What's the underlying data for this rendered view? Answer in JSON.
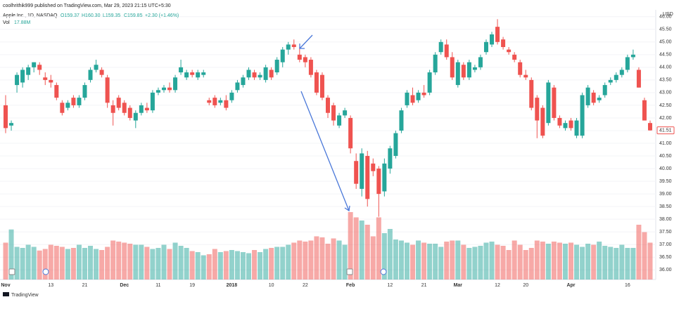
{
  "chart_data": {
    "type": "candlestick",
    "title": "coolhrithik999 published on TradingView.com, Mar 29, 2023 21:15 UTC+5:30",
    "symbol": "Apple Inc., 1D, NASDAQ",
    "ohlc_legend": [
      "O159.37",
      "H160.30",
      "L159.35",
      "C159.85",
      "+2.30 (+1.46%)"
    ],
    "volume_label": "Vol",
    "volume_value": "17.88M",
    "currency": "USD",
    "brand": "TradingView",
    "up_color": "#26a69a",
    "down_color": "#ef5350",
    "grid": true,
    "ylim": [
      35.62,
      46.27
    ],
    "yticks": [
      {
        "value": 36,
        "label": "36.00"
      },
      {
        "value": 36.5,
        "label": "36.50"
      },
      {
        "value": 37,
        "label": "37.00"
      },
      {
        "value": 37.5,
        "label": "37.50"
      },
      {
        "value": 38,
        "label": "38.00"
      },
      {
        "value": 38.5,
        "label": "38.50"
      },
      {
        "value": 39,
        "label": "39.00"
      },
      {
        "value": 39.5,
        "label": "39.50"
      },
      {
        "value": 40,
        "label": "40.00"
      },
      {
        "value": 40.5,
        "label": "40.50"
      },
      {
        "value": 41,
        "label": "41.00"
      },
      {
        "value": 41.5,
        "label": "41.50"
      },
      {
        "value": 42,
        "label": "42.00"
      },
      {
        "value": 42.5,
        "label": "42.50"
      },
      {
        "value": 43,
        "label": "43.00"
      },
      {
        "value": 43.5,
        "label": "43.50"
      },
      {
        "value": 44,
        "label": "44.00"
      },
      {
        "value": 44.5,
        "label": "44.50"
      },
      {
        "value": 45,
        "label": "45.00"
      },
      {
        "value": 45.5,
        "label": "45.50"
      },
      {
        "value": 46,
        "label": "46.00"
      }
    ],
    "volume_ylim": [
      0,
      200
    ],
    "categories": [
      "Nov",
      null,
      null,
      null,
      null,
      null,
      null,
      null,
      "13",
      null,
      null,
      null,
      null,
      null,
      "21",
      null,
      null,
      null,
      null,
      null,
      null,
      "Dec",
      null,
      null,
      null,
      null,
      null,
      "11",
      null,
      null,
      null,
      null,
      null,
      "19",
      null,
      null,
      null,
      null,
      null,
      null,
      "2018",
      null,
      null,
      null,
      null,
      null,
      null,
      "10",
      null,
      null,
      null,
      null,
      null,
      "22",
      null,
      null,
      null,
      null,
      null,
      null,
      null,
      "Feb",
      null,
      null,
      null,
      null,
      null,
      null,
      "12",
      null,
      null,
      null,
      null,
      null,
      "21",
      null,
      null,
      null,
      null,
      null,
      "Mar",
      null,
      null,
      null,
      null,
      null,
      null,
      "12",
      null,
      null,
      null,
      null,
      "20",
      null,
      null,
      null,
      null,
      null,
      null,
      null,
      "Apr",
      null,
      null,
      null,
      null,
      null,
      null,
      null,
      null,
      null,
      "16",
      null,
      null,
      null,
      null
    ],
    "open": [
      42.5,
      41.7,
      43.3,
      43.4,
      43.7,
      44.0,
      44.1,
      43.6,
      43.5,
      43.3,
      42.6,
      42.4,
      42.8,
      42.5,
      42.8,
      43.5,
      43.9,
      43.9,
      43.6,
      42.5,
      42.8,
      42.6,
      42.4,
      41.9,
      42.2,
      42.4,
      42.3,
      43.0,
      43.1,
      43.2,
      43.1,
      43.8,
      43.6,
      43.8,
      43.6,
      43.7,
      42.7,
      42.8,
      42.6,
      42.7,
      42.7,
      43.1,
      43.3,
      43.6,
      43.8,
      43.6,
      43.5,
      43.9,
      43.8,
      44.2,
      44.7,
      44.9,
      44.5,
      44.4,
      44.3,
      43.8,
      43.7,
      42.8,
      42.5,
      41.7,
      42.1,
      42.0,
      40.3,
      39.2,
      40.5,
      40.2,
      40.0,
      39.1,
      40.0,
      40.5,
      41.5,
      42.5,
      42.9,
      42.7,
      43.0,
      43.0,
      43.8,
      44.6,
      44.9,
      44.4,
      43.3,
      44.1,
      43.6,
      43.9,
      44.0,
      44.6,
      44.9,
      45.6,
      45.1,
      44.7,
      44.5,
      44.2,
      43.7,
      43.5,
      42.8,
      42.4,
      41.8,
      43.2,
      42.0,
      41.6,
      41.9,
      41.3,
      41.3,
      42.5,
      43.0,
      42.7,
      42.9,
      43.4,
      43.5,
      43.7,
      43.9,
      44.4,
      43.9,
      42.7,
      41.8
    ],
    "high": [
      42.9,
      41.9,
      43.8,
      44.0,
      44.1,
      44.2,
      44.2,
      43.8,
      43.7,
      43.4,
      42.7,
      42.7,
      42.9,
      42.9,
      43.4,
      44.0,
      44.3,
      44.0,
      43.7,
      42.7,
      42.9,
      42.7,
      42.5,
      42.3,
      42.6,
      42.6,
      43.1,
      43.2,
      43.3,
      43.4,
      43.7,
      44.3,
      43.9,
      43.9,
      43.9,
      43.9,
      42.8,
      42.9,
      42.8,
      42.9,
      43.1,
      43.5,
      43.7,
      44.0,
      43.9,
      43.8,
      44.1,
      44.0,
      44.4,
      44.8,
      45.0,
      45.1,
      44.8,
      44.5,
      44.4,
      43.9,
      43.8,
      42.9,
      42.6,
      42.2,
      42.4,
      42.1,
      40.6,
      40.8,
      40.7,
      40.4,
      40.1,
      40.4,
      40.9,
      41.5,
      42.4,
      43.1,
      43.2,
      43.1,
      43.3,
      43.9,
      44.6,
      45.1,
      45.1,
      44.6,
      44.3,
      44.2,
      44.3,
      44.1,
      44.5,
      45.1,
      45.4,
      45.9,
      45.2,
      44.8,
      44.6,
      44.3,
      43.9,
      43.6,
      42.9,
      42.5,
      43.5,
      43.3,
      42.1,
      41.9,
      42.0,
      42.0,
      43.0,
      43.3,
      43.1,
      42.9,
      43.4,
      43.6,
      43.8,
      44.0,
      44.5,
      44.7,
      44.0,
      42.8,
      41.9
    ],
    "low": [
      41.4,
      41.5,
      43.0,
      43.2,
      43.5,
      43.8,
      43.7,
      43.3,
      43.2,
      42.7,
      42.1,
      42.3,
      42.4,
      42.4,
      42.7,
      43.4,
      43.8,
      43.6,
      42.4,
      41.7,
      42.3,
      42.1,
      41.9,
      41.6,
      42.1,
      42.2,
      42.2,
      42.9,
      43.0,
      43.0,
      43.0,
      43.7,
      43.5,
      43.6,
      43.5,
      43.6,
      42.5,
      42.4,
      42.5,
      42.3,
      42.6,
      43.0,
      43.2,
      43.5,
      43.5,
      43.5,
      43.4,
      43.5,
      43.7,
      44.0,
      44.5,
      44.7,
      44.2,
      44.0,
      43.6,
      42.9,
      42.7,
      42.0,
      41.7,
      41.6,
      42.0,
      40.6,
      39.2,
      38.9,
      38.5,
      39.7,
      38.1,
      38.9,
      39.8,
      40.4,
      41.4,
      42.4,
      42.5,
      42.6,
      42.8,
      42.9,
      43.7,
      44.5,
      44.3,
      43.5,
      43.2,
      43.5,
      43.5,
      43.8,
      43.9,
      44.5,
      44.8,
      44.9,
      44.7,
      44.5,
      44.2,
      43.6,
      43.5,
      42.3,
      41.2,
      41.2,
      41.7,
      41.9,
      41.6,
      41.5,
      41.5,
      41.2,
      41.2,
      42.4,
      42.5,
      42.6,
      42.8,
      43.3,
      43.4,
      43.6,
      43.8,
      44.3,
      43.2,
      41.9,
      41.5
    ],
    "close": [
      41.6,
      41.8,
      43.7,
      43.9,
      44.0,
      44.2,
      43.9,
      43.5,
      43.4,
      42.8,
      42.2,
      42.6,
      42.5,
      42.8,
      43.3,
      43.9,
      44.1,
      43.7,
      42.6,
      42.2,
      42.4,
      42.2,
      42.0,
      42.2,
      42.5,
      42.3,
      43.0,
      43.1,
      43.2,
      43.1,
      43.6,
      44.0,
      43.8,
      43.7,
      43.8,
      43.8,
      42.6,
      42.5,
      42.7,
      42.4,
      43.0,
      43.4,
      43.6,
      43.9,
      43.6,
      43.7,
      44.0,
      43.6,
      44.3,
      44.7,
      44.9,
      44.8,
      44.3,
      44.2,
      43.7,
      43.0,
      42.8,
      42.2,
      41.9,
      42.1,
      42.3,
      40.8,
      39.4,
      40.6,
      38.8,
      39.9,
      39.0,
      40.2,
      40.8,
      41.4,
      42.3,
      43.0,
      42.6,
      43.0,
      42.9,
      43.8,
      44.5,
      45.0,
      44.4,
      43.6,
      44.2,
      43.6,
      44.2,
      44.0,
      44.4,
      45.0,
      45.3,
      45.0,
      44.8,
      44.6,
      44.3,
      43.7,
      43.6,
      42.4,
      41.9,
      41.3,
      43.4,
      42.0,
      41.7,
      41.8,
      41.6,
      41.9,
      42.9,
      43.2,
      42.6,
      42.8,
      43.3,
      43.5,
      43.7,
      43.9,
      44.4,
      44.5,
      43.2,
      41.9,
      41.51
    ],
    "volume": [
      70,
      95,
      62,
      60,
      66,
      62,
      55,
      58,
      66,
      64,
      62,
      58,
      60,
      66,
      60,
      64,
      58,
      56,
      62,
      74,
      72,
      70,
      68,
      66,
      66,
      62,
      58,
      60,
      66,
      58,
      70,
      64,
      60,
      54,
      52,
      46,
      48,
      58,
      52,
      54,
      56,
      54,
      52,
      50,
      56,
      52,
      58,
      60,
      62,
      62,
      66,
      70,
      74,
      72,
      74,
      82,
      80,
      68,
      78,
      74,
      66,
      128,
      118,
      112,
      104,
      82,
      118,
      88,
      96,
      76,
      74,
      70,
      66,
      74,
      70,
      68,
      68,
      62,
      72,
      74,
      74,
      66,
      60,
      62,
      64,
      70,
      72,
      66,
      64,
      56,
      74,
      66,
      56,
      60,
      74,
      72,
      68,
      72,
      70,
      68,
      70,
      66,
      62,
      68,
      66,
      72,
      64,
      62,
      60,
      66,
      60,
      60,
      104,
      90,
      70
    ]
  }
}
